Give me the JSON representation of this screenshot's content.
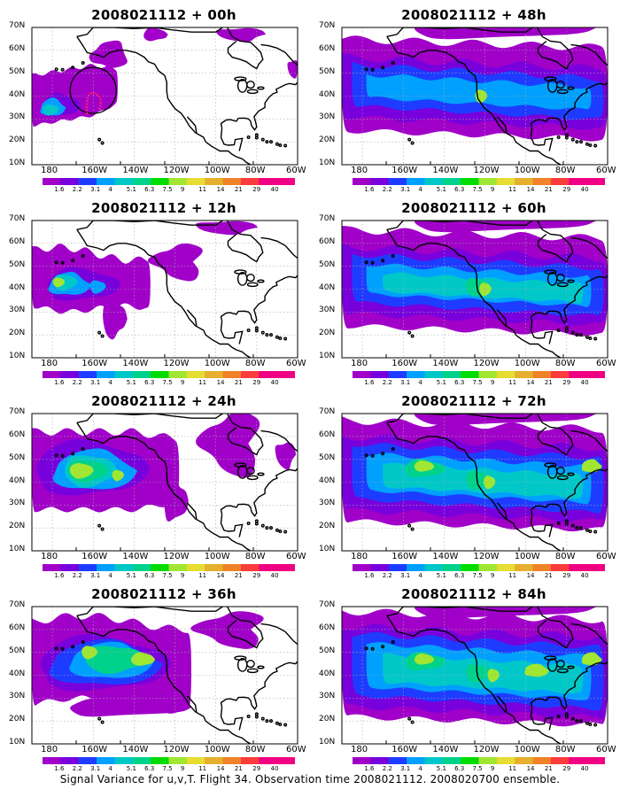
{
  "caption": "Signal Variance for u,v,T. Flight 34. Observation time 2008021112. 2008020700 ensemble.",
  "colorbar": {
    "labels": [
      "1.6",
      "2.2",
      "3.1",
      "4",
      "5.1",
      "6.3",
      "7.5",
      "9",
      "11",
      "14",
      "21",
      "29",
      "40"
    ],
    "colors": [
      "#a000c8",
      "#7800dc",
      "#1e3cff",
      "#00a0ff",
      "#00c8c8",
      "#00d28c",
      "#00dc00",
      "#a0e632",
      "#e6dc32",
      "#e6af2d",
      "#f08228",
      "#fa3c3c",
      "#f00082"
    ]
  },
  "axes": {
    "y_labels": [
      "70N",
      "60N",
      "50N",
      "40N",
      "30N",
      "20N",
      "10N"
    ],
    "x_labels": [
      "180",
      "160W",
      "140W",
      "120W",
      "100W",
      "80W",
      "60W"
    ]
  },
  "panels": [
    {
      "title": "2008021112 + 00h",
      "level": 0
    },
    {
      "title": "2008021112 + 12h",
      "level": 1
    },
    {
      "title": "2008021112 + 24h",
      "level": 2
    },
    {
      "title": "2008021112 + 36h",
      "level": 3
    },
    {
      "title": "2008021112 + 48h",
      "level": 4
    },
    {
      "title": "2008021112 + 60h",
      "level": 5
    },
    {
      "title": "2008021112 + 72h",
      "level": 6
    },
    {
      "title": "2008021112 + 84h",
      "level": 7
    }
  ],
  "flight_track_color": "#ff1e78",
  "coastline_color": "#000000"
}
